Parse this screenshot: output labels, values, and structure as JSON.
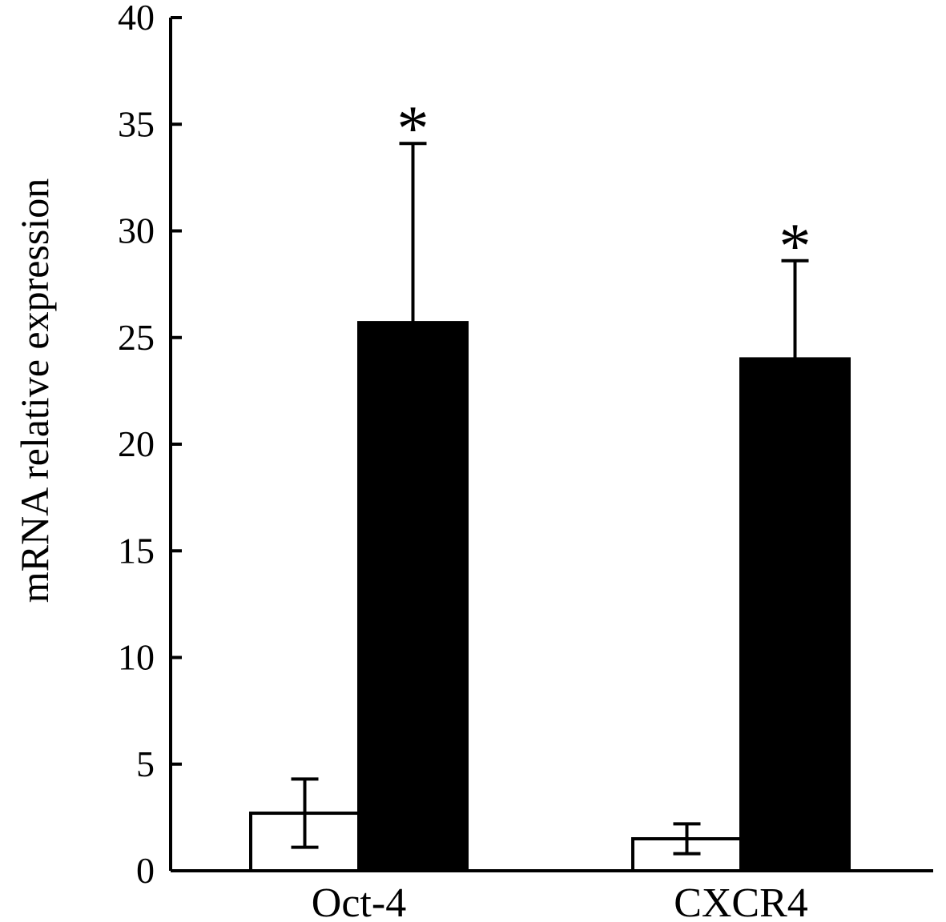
{
  "chart_data": {
    "type": "bar",
    "title": "",
    "xlabel": "",
    "ylabel": "mRNA relative expression",
    "ylim": [
      0,
      40
    ],
    "yticks": [
      0,
      5,
      10,
      15,
      20,
      25,
      30,
      35,
      40
    ],
    "categories": [
      "Oct-4",
      "CXCR4"
    ],
    "series": [
      {
        "fill": "#ffffff",
        "stroke": "#000000",
        "values": [
          2.7,
          1.5
        ],
        "errors": [
          1.6,
          0.7
        ]
      },
      {
        "fill": "#000000",
        "stroke": "#000000",
        "values": [
          25.7,
          24.0
        ],
        "errors": [
          8.4,
          4.6
        ]
      }
    ],
    "annotations": [
      {
        "text": "*",
        "category": 0,
        "series": 1
      },
      {
        "text": "*",
        "category": 1,
        "series": 1
      }
    ],
    "grid": false,
    "legend": "none"
  }
}
